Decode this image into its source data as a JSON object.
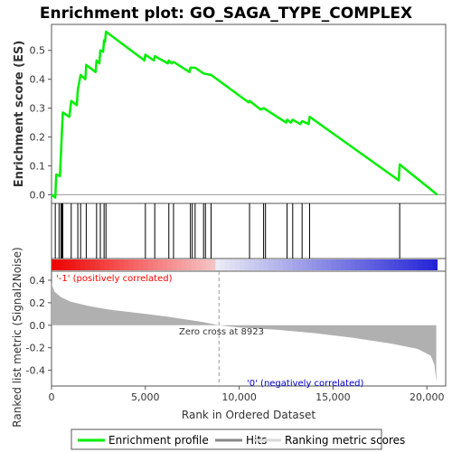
{
  "title": "Enrichment plot: GO_SAGA_TYPE_COMPLEX",
  "colors": {
    "enrichment_line": "#00ee00",
    "hits": "#000000",
    "metric_fill": "#b0b0b0",
    "positive_label": "#ff0000",
    "negative_label": "#0000cc",
    "frame": "#555555"
  },
  "chart_data": [
    {
      "name": "enrichment-profile",
      "type": "line",
      "ylabel": "Enrichment score (ES)",
      "ylim": [
        -0.03,
        0.59
      ],
      "xlim": [
        0,
        21000
      ],
      "yticks": [
        "0.0",
        "0.1",
        "0.2",
        "0.3",
        "0.4",
        "0.5"
      ],
      "ytick_values": [
        0.0,
        0.1,
        0.2,
        0.3,
        0.4,
        0.5
      ],
      "points": [
        [
          0,
          0.0
        ],
        [
          200,
          -0.01
        ],
        [
          250,
          0.07
        ],
        [
          450,
          0.065
        ],
        [
          500,
          0.14
        ],
        [
          550,
          0.21
        ],
        [
          600,
          0.285
        ],
        [
          950,
          0.27
        ],
        [
          1050,
          0.325
        ],
        [
          1350,
          0.31
        ],
        [
          1400,
          0.365
        ],
        [
          1550,
          0.415
        ],
        [
          1800,
          0.4
        ],
        [
          1850,
          0.45
        ],
        [
          2350,
          0.425
        ],
        [
          2400,
          0.465
        ],
        [
          2550,
          0.455
        ],
        [
          2600,
          0.5
        ],
        [
          2750,
          0.495
        ],
        [
          2800,
          0.535
        ],
        [
          2850,
          0.53
        ],
        [
          2900,
          0.565
        ],
        [
          4950,
          0.465
        ],
        [
          5000,
          0.485
        ],
        [
          5450,
          0.465
        ],
        [
          5500,
          0.48
        ],
        [
          6200,
          0.455
        ],
        [
          6250,
          0.465
        ],
        [
          6400,
          0.455
        ],
        [
          6500,
          0.46
        ],
        [
          7350,
          0.425
        ],
        [
          7400,
          0.44
        ],
        [
          7650,
          0.44
        ],
        [
          8100,
          0.42
        ],
        [
          8500,
          0.415
        ],
        [
          10500,
          0.32
        ],
        [
          10550,
          0.325
        ],
        [
          11150,
          0.295
        ],
        [
          11300,
          0.3
        ],
        [
          12500,
          0.25
        ],
        [
          12550,
          0.26
        ],
        [
          12750,
          0.25
        ],
        [
          12850,
          0.26
        ],
        [
          13250,
          0.245
        ],
        [
          13350,
          0.255
        ],
        [
          13700,
          0.245
        ],
        [
          13750,
          0.27
        ],
        [
          18500,
          0.05
        ],
        [
          18550,
          0.105
        ],
        [
          20550,
          0.0
        ]
      ],
      "hits": [
        200,
        400,
        500,
        550,
        600,
        1050,
        1400,
        1550,
        1850,
        2400,
        2600,
        2800,
        2900,
        5000,
        5500,
        6250,
        6500,
        7400,
        7500,
        7650,
        8100,
        8200,
        8500,
        10550,
        11300,
        11400,
        12550,
        12850,
        13350,
        13750,
        18550
      ]
    },
    {
      "name": "ranked-list-metric",
      "type": "area",
      "xlabel": "Rank in Ordered Dataset",
      "ylabel": "Ranked list metric (Signal2Noise)",
      "xlim": [
        0,
        21000
      ],
      "ylim": [
        -0.54,
        0.48
      ],
      "xticks": [
        "0",
        "5,000",
        "10,000",
        "15,000",
        "20,000"
      ],
      "xtick_values": [
        0,
        5000,
        10000,
        15000,
        20000
      ],
      "yticks": [
        "0.4",
        "0.2",
        "0.0",
        "-0.2",
        "-0.4"
      ],
      "ytick_values": [
        0.4,
        0.2,
        0.0,
        -0.2,
        -0.4
      ],
      "metric_points": [
        [
          0,
          0.37
        ],
        [
          150,
          0.3
        ],
        [
          500,
          0.25
        ],
        [
          1000,
          0.21
        ],
        [
          2000,
          0.17
        ],
        [
          3000,
          0.14
        ],
        [
          4000,
          0.12
        ],
        [
          6000,
          0.08
        ],
        [
          8000,
          0.03
        ],
        [
          8923,
          0.0
        ],
        [
          10000,
          -0.02
        ],
        [
          12000,
          -0.04
        ],
        [
          14000,
          -0.07
        ],
        [
          16000,
          -0.11
        ],
        [
          18000,
          -0.16
        ],
        [
          19500,
          -0.21
        ],
        [
          20200,
          -0.27
        ],
        [
          20400,
          -0.35
        ],
        [
          20500,
          -0.5
        ]
      ],
      "zero_cross_rank": 8923,
      "annotations": {
        "positive": "'-1' (positively correlated)",
        "zero_cross": "Zero cross at 8923",
        "negative": "'0' (negatively correlated)"
      }
    }
  ],
  "legend": {
    "items": [
      "Enrichment profile",
      "Hits",
      "Ranking metric scores"
    ]
  }
}
